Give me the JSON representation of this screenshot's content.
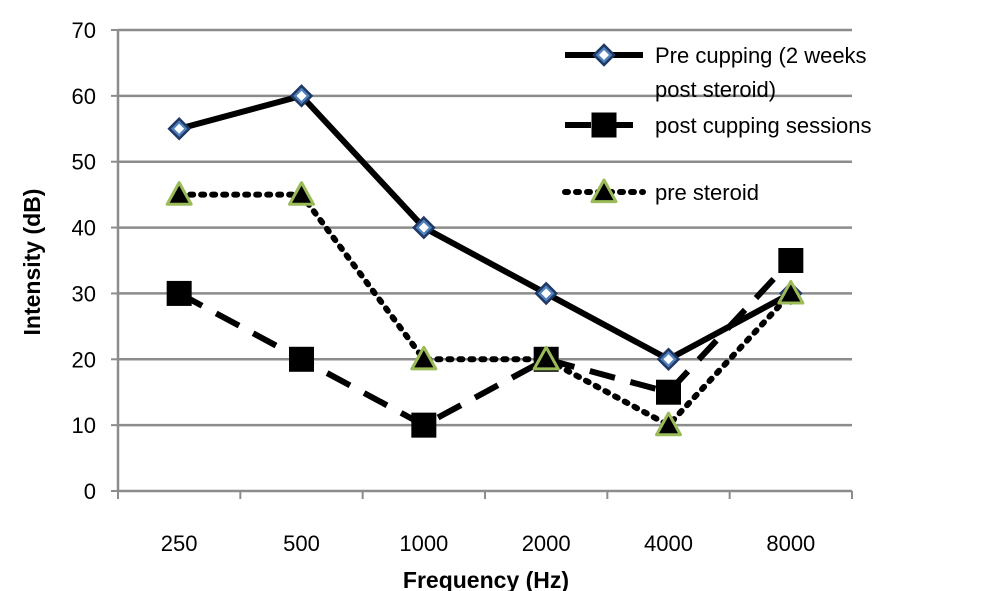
{
  "chart_data": {
    "type": "line",
    "categories": [
      "250",
      "500",
      "1000",
      "2000",
      "4000",
      "8000"
    ],
    "xlabel": "Frequency (Hz)",
    "ylabel": "Intensity (dB)",
    "ylim": [
      0,
      70
    ],
    "yticks": [
      "0",
      "10",
      "20",
      "30",
      "40",
      "50",
      "60",
      "70"
    ],
    "grid": true,
    "legend_position": "top-right",
    "series": [
      {
        "name": "Pre cupping (2 weeks post steroid)",
        "name_lines": [
          "Pre cupping (2 weeks",
          "post steroid)"
        ],
        "values": [
          55,
          60,
          40,
          30,
          20,
          30
        ],
        "line": "solid",
        "marker": "diamond",
        "marker_fill": "#4f81bd",
        "marker_stroke": "#1f3864"
      },
      {
        "name": "post cupping sessions",
        "name_lines": [
          "post cupping sessions"
        ],
        "values": [
          30,
          20,
          10,
          20,
          15,
          35
        ],
        "line": "dashed",
        "marker": "square",
        "marker_fill": "#000000",
        "marker_stroke": "#000000"
      },
      {
        "name": "pre steroid",
        "name_lines": [
          "pre steroid"
        ],
        "values": [
          45,
          45,
          20,
          20,
          10,
          30
        ],
        "line": "dotted",
        "marker": "triangle",
        "marker_fill": "#000000",
        "marker_stroke": "#9bbb59"
      }
    ]
  }
}
